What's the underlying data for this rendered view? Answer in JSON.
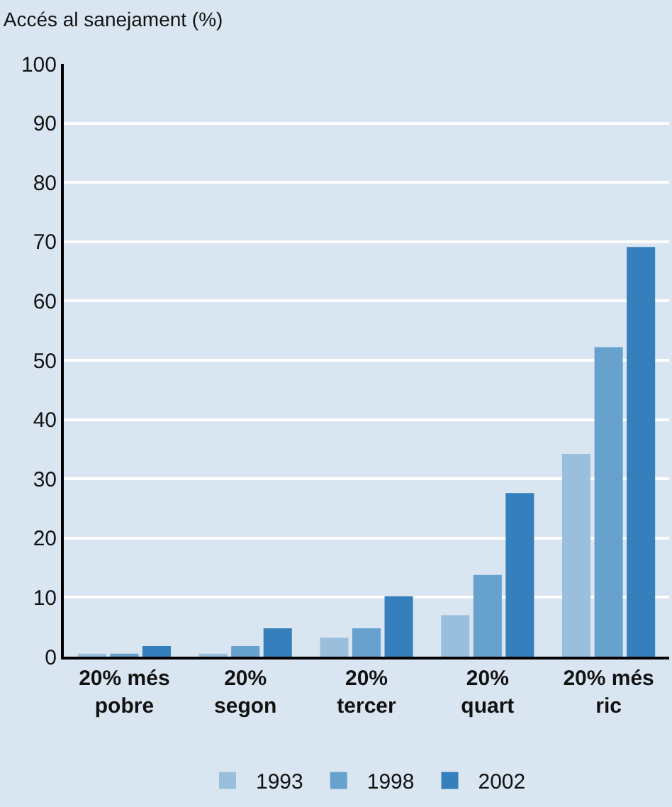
{
  "chart_data": {
    "type": "bar",
    "title": "Accés al sanejament (%)",
    "categories": [
      "20% més\npobre",
      "20%\nsegon",
      "20%\ntercer",
      "20%\nquart",
      "20% més\nric"
    ],
    "series": [
      {
        "name": "1993",
        "color": "#9abfdd",
        "values": [
          0.5,
          0.5,
          3.2,
          7.0,
          34.2
        ]
      },
      {
        "name": "1998",
        "color": "#67a1cd",
        "values": [
          0.5,
          1.8,
          4.8,
          13.8,
          52.2
        ]
      },
      {
        "name": "2002",
        "color": "#3580bc",
        "values": [
          1.8,
          4.8,
          10.2,
          27.6,
          69.1
        ]
      }
    ],
    "ylim": [
      0,
      100
    ],
    "yticks": [
      0,
      10,
      20,
      30,
      40,
      50,
      60,
      70,
      80,
      90,
      100
    ],
    "grid": "y",
    "legend": "bottom"
  }
}
